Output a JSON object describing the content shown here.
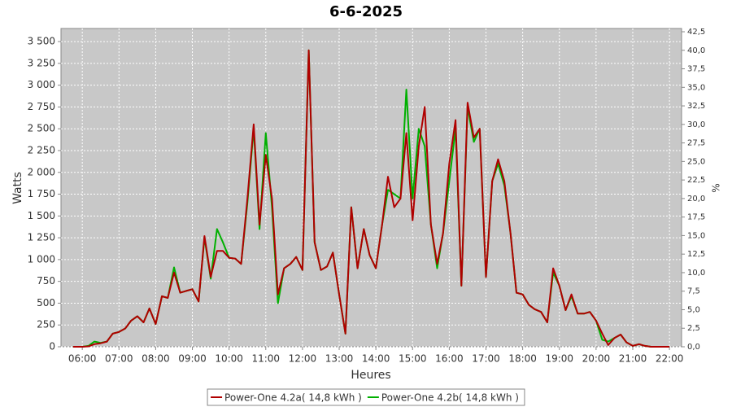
{
  "chart_data": {
    "type": "line",
    "title": "6-6-2025",
    "xlabel": "Heures",
    "ylabel": "Watts",
    "y2label": "%",
    "x": [
      5.75,
      6,
      6.17,
      6.33,
      6.5,
      6.67,
      6.83,
      7,
      7.17,
      7.33,
      7.5,
      7.67,
      7.83,
      8,
      8.17,
      8.33,
      8.5,
      8.67,
      8.83,
      9,
      9.17,
      9.33,
      9.5,
      9.67,
      9.83,
      10,
      10.17,
      10.33,
      10.5,
      10.67,
      10.83,
      11,
      11.17,
      11.33,
      11.5,
      11.67,
      11.83,
      12,
      12.17,
      12.33,
      12.5,
      12.67,
      12.83,
      13,
      13.17,
      13.33,
      13.5,
      13.67,
      13.83,
      14,
      14.17,
      14.33,
      14.5,
      14.67,
      14.83,
      15,
      15.17,
      15.33,
      15.5,
      15.67,
      15.83,
      16,
      16.17,
      16.33,
      16.5,
      16.67,
      16.83,
      17,
      17.17,
      17.33,
      17.5,
      17.67,
      17.83,
      18,
      18.17,
      18.33,
      18.5,
      18.67,
      18.83,
      19,
      19.17,
      19.33,
      19.5,
      19.67,
      19.83,
      20,
      20.17,
      20.33,
      20.5,
      20.67,
      20.83,
      21,
      21.17,
      21.33,
      21.5,
      21.75,
      22
    ],
    "series": [
      {
        "name": "Power-One 4.2b( 14,8 kWh )",
        "color": "#00b000",
        "values": [
          0,
          0,
          10,
          60,
          45,
          60,
          150,
          170,
          210,
          300,
          350,
          280,
          440,
          260,
          580,
          560,
          910,
          620,
          640,
          660,
          520,
          1250,
          780,
          1350,
          1200,
          1020,
          1010,
          950,
          1650,
          2500,
          1350,
          2450,
          1600,
          500,
          900,
          950,
          1030,
          880,
          3400,
          1200,
          880,
          920,
          1080,
          600,
          150,
          1600,
          900,
          1350,
          1050,
          900,
          1400,
          1800,
          1750,
          1700,
          2950,
          1700,
          2500,
          2300,
          1400,
          900,
          1300,
          1900,
          2500,
          700,
          2750,
          2350,
          2500,
          800,
          1900,
          2100,
          1850,
          1300,
          620,
          600,
          480,
          430,
          400,
          280,
          850,
          700,
          420,
          580,
          380,
          380,
          400,
          300,
          80,
          60,
          100,
          140,
          50,
          10,
          30,
          10,
          0,
          0,
          0
        ]
      },
      {
        "name": "Power-One 4.2a( 14,8 kWh )",
        "color": "#b00000",
        "values": [
          0,
          0,
          5,
          30,
          40,
          60,
          150,
          170,
          210,
          300,
          350,
          280,
          440,
          260,
          580,
          560,
          850,
          620,
          640,
          660,
          520,
          1270,
          800,
          1100,
          1100,
          1020,
          1010,
          950,
          1700,
          2550,
          1400,
          2200,
          1700,
          600,
          900,
          950,
          1030,
          880,
          3400,
          1200,
          880,
          920,
          1080,
          600,
          150,
          1600,
          900,
          1350,
          1050,
          900,
          1400,
          1950,
          1600,
          1700,
          2450,
          1450,
          2300,
          2750,
          1400,
          950,
          1300,
          2100,
          2600,
          700,
          2800,
          2400,
          2500,
          800,
          1900,
          2150,
          1900,
          1300,
          620,
          600,
          480,
          430,
          400,
          280,
          900,
          700,
          420,
          600,
          380,
          380,
          400,
          300,
          150,
          20,
          100,
          140,
          50,
          10,
          30,
          10,
          0,
          0,
          0
        ]
      }
    ],
    "legend_order": [
      1,
      0
    ],
    "xlim": [
      5.42,
      22.33
    ],
    "xticks": [
      {
        "value": 6,
        "label": "06:00"
      },
      {
        "value": 7,
        "label": "07:00"
      },
      {
        "value": 8,
        "label": "08:00"
      },
      {
        "value": 9,
        "label": "09:00"
      },
      {
        "value": 10,
        "label": "10:00"
      },
      {
        "value": 11,
        "label": "11:00"
      },
      {
        "value": 12,
        "label": "12:00"
      },
      {
        "value": 13,
        "label": "13:00"
      },
      {
        "value": 14,
        "label": "14:00"
      },
      {
        "value": 15,
        "label": "15:00"
      },
      {
        "value": 16,
        "label": "16:00"
      },
      {
        "value": 17,
        "label": "17:00"
      },
      {
        "value": 18,
        "label": "18:00"
      },
      {
        "value": 19,
        "label": "19:00"
      },
      {
        "value": 20,
        "label": "20:00"
      },
      {
        "value": 21,
        "label": "21:00"
      },
      {
        "value": 22,
        "label": "22:00"
      }
    ],
    "ylim": [
      0,
      3650
    ],
    "yticks": [
      0,
      250,
      500,
      750,
      {
        "value": 1000,
        "label": "1 000"
      },
      {
        "value": 1250,
        "label": "1 250"
      },
      {
        "value": 1500,
        "label": "1 500"
      },
      {
        "value": 1750,
        "label": "1 750"
      },
      {
        "value": 2000,
        "label": "2 000"
      },
      {
        "value": 2250,
        "label": "2 250"
      },
      {
        "value": 2500,
        "label": "2 500"
      },
      {
        "value": 2750,
        "label": "2 750"
      },
      {
        "value": 3000,
        "label": "3 000"
      },
      {
        "value": 3250,
        "label": "3 250"
      },
      {
        "value": 3500,
        "label": "3 500"
      }
    ],
    "y2lim": [
      0,
      42.94
    ],
    "y2ticks": [
      {
        "value": 0,
        "label": "0,0"
      },
      {
        "value": 2.5,
        "label": "2,5"
      },
      {
        "value": 5,
        "label": "5,0"
      },
      {
        "value": 7.5,
        "label": "7,5"
      },
      {
        "value": 10,
        "label": "10,0"
      },
      {
        "value": 12.5,
        "label": "12,5"
      },
      {
        "value": 15,
        "label": "15,0"
      },
      {
        "value": 17.5,
        "label": "17,5"
      },
      {
        "value": 20,
        "label": "20,0"
      },
      {
        "value": 22.5,
        "label": "22,5"
      },
      {
        "value": 25,
        "label": "25,0"
      },
      {
        "value": 27.5,
        "label": "27,5"
      },
      {
        "value": 30,
        "label": "30,0"
      },
      {
        "value": 32.5,
        "label": "32,5"
      },
      {
        "value": 35,
        "label": "35,0"
      },
      {
        "value": 37.5,
        "label": "37,5"
      },
      {
        "value": 40,
        "label": "40,0"
      },
      {
        "value": 42.5,
        "label": "42,5"
      }
    ],
    "grid": true,
    "plot_background": "#c8c8c8",
    "legend_position": "bottom"
  }
}
